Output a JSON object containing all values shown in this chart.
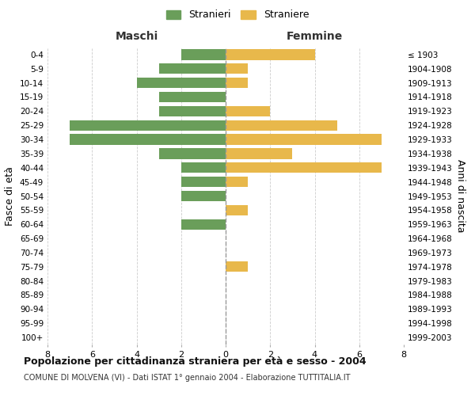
{
  "age_groups": [
    "0-4",
    "5-9",
    "10-14",
    "15-19",
    "20-24",
    "25-29",
    "30-34",
    "35-39",
    "40-44",
    "45-49",
    "50-54",
    "55-59",
    "60-64",
    "65-69",
    "70-74",
    "75-79",
    "80-84",
    "85-89",
    "90-94",
    "95-99",
    "100+"
  ],
  "birth_years": [
    "1999-2003",
    "1994-1998",
    "1989-1993",
    "1984-1988",
    "1979-1983",
    "1974-1978",
    "1969-1973",
    "1964-1968",
    "1959-1963",
    "1954-1958",
    "1949-1953",
    "1944-1948",
    "1939-1943",
    "1934-1938",
    "1929-1933",
    "1924-1928",
    "1919-1923",
    "1914-1918",
    "1909-1913",
    "1904-1908",
    "≤ 1903"
  ],
  "maschi": [
    2,
    3,
    4,
    3,
    3,
    7,
    7,
    3,
    2,
    2,
    2,
    0,
    2,
    0,
    0,
    0,
    0,
    0,
    0,
    0,
    0
  ],
  "femmine": [
    4,
    1,
    1,
    0,
    2,
    5,
    7,
    3,
    7,
    1,
    0,
    1,
    0,
    0,
    0,
    1,
    0,
    0,
    0,
    0,
    0
  ],
  "maschi_color": "#6a9e5a",
  "femmine_color": "#e8b84b",
  "title": "Popolazione per cittadinanza straniera per età e sesso - 2004",
  "subtitle": "COMUNE DI MOLVENA (VI) - Dati ISTAT 1° gennaio 2004 - Elaborazione TUTTITALIA.IT",
  "legend_maschi": "Stranieri",
  "legend_femmine": "Straniere",
  "xlabel_left": "Maschi",
  "xlabel_right": "Femmine",
  "ylabel_left": "Fasce di età",
  "ylabel_right": "Anni di nascita",
  "xlim": 8,
  "background_color": "#ffffff",
  "grid_color": "#cccccc"
}
